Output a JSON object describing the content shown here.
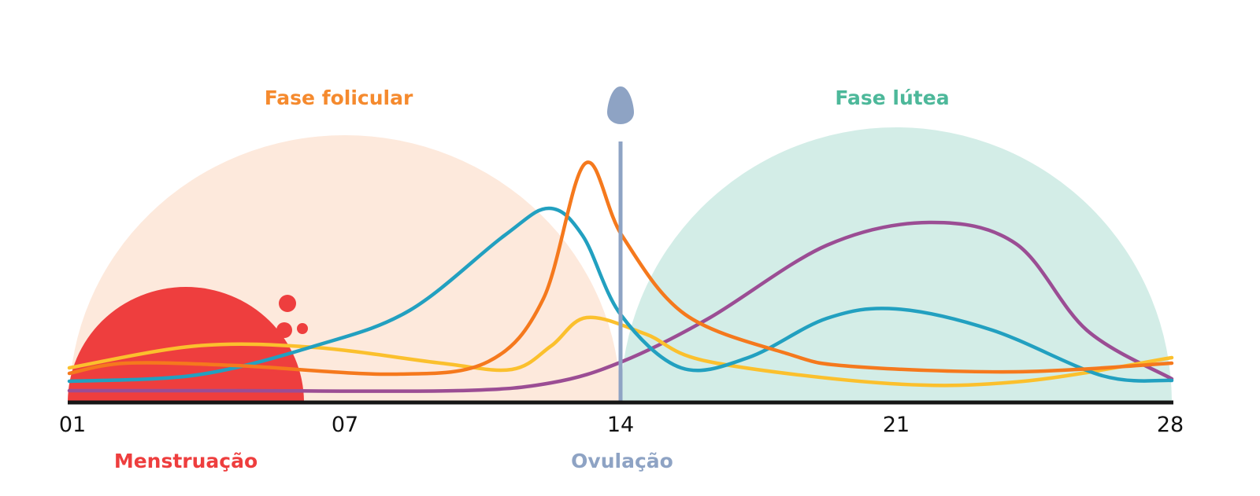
{
  "phases": {
    "follicular": "Fase folicular",
    "luteal": "Fase lútea",
    "menstruation": "Menstruação",
    "ovulation": "Ovulação"
  },
  "days": [
    "01",
    "07",
    "14",
    "21",
    "28"
  ]
}
